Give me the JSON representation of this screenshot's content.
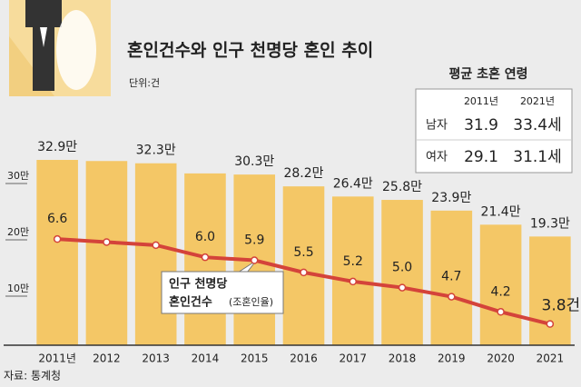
{
  "chart_data": {
    "type": "bar",
    "title": "혼인건수와 인구 천명당 혼인 추이",
    "subtitle": "단위:건",
    "source": "자료: 통계청",
    "categories": [
      "2011년",
      "2012",
      "2013",
      "2014",
      "2015",
      "2016",
      "2017",
      "2018",
      "2019",
      "2020",
      "2021"
    ],
    "series": [
      {
        "color": "#f4c766",
        "values": [
          32.9,
          32.7,
          32.3,
          30.5,
          30.3,
          28.2,
          26.4,
          25.8,
          23.9,
          21.4,
          19.3
        ],
        "value_labels": [
          "32.9만",
          null,
          "32.3만",
          null,
          "30.3만",
          "28.2만",
          "26.4만",
          "25.8만",
          "23.9만",
          "21.4만",
          "19.3만"
        ]
      },
      {
        "type": "line",
        "axis": "y2",
        "color": "#d4433a",
        "values": [
          6.6,
          6.5,
          6.4,
          6.0,
          5.9,
          5.5,
          5.2,
          5.0,
          4.7,
          4.2,
          3.8
        ],
        "value_labels": [
          "6.6",
          null,
          null,
          "6.0",
          "5.9",
          "5.5",
          "5.2",
          "5.0",
          "4.7",
          "4.2",
          "3.8건"
        ]
      }
    ],
    "legend_lines": [
      "인구 천명당",
      "혼인건수",
      "(조혼인율)"
    ],
    "ylim": [
      0,
      35
    ],
    "yticks": [
      {
        "value": 10,
        "label": "10만"
      },
      {
        "value": 20,
        "label": "20만"
      },
      {
        "value": 30,
        "label": "30만"
      }
    ],
    "y2lim": [
      3.1,
      9.6
    ]
  },
  "table": {
    "title": "평균 초혼 연령",
    "header": [
      "2011년",
      "2021년"
    ],
    "rows": [
      [
        "남자",
        "31.9",
        "33.4세"
      ],
      [
        "여자",
        "29.1",
        "31.1세"
      ]
    ]
  }
}
